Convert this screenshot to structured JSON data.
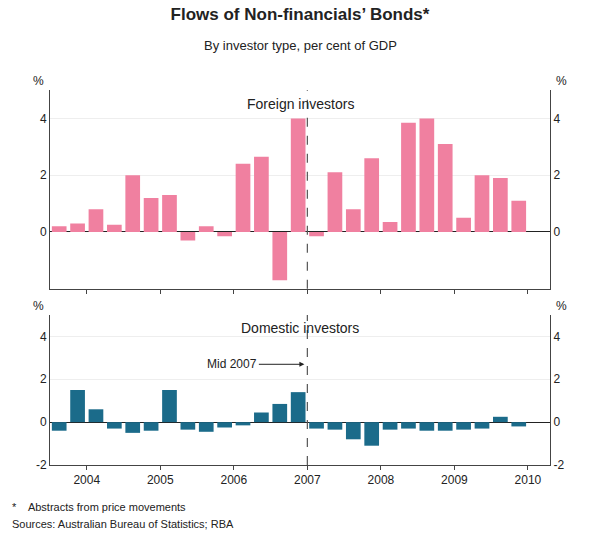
{
  "title": "Flows of Non-financials’ Bonds*",
  "subtitle": "By investor type, per cent of GDP",
  "annotations": [
    "*    Abstracts from price movements",
    "Sources: Australian Bureau of Statistics; RBA"
  ],
  "chart_data": [
    {
      "type": "bar",
      "title": "Foreign investors",
      "x": [
        2003.625,
        2003.875,
        2004.125,
        2004.375,
        2004.625,
        2004.875,
        2005.125,
        2005.375,
        2005.625,
        2005.875,
        2006.125,
        2006.375,
        2006.625,
        2006.875,
        2007.125,
        2007.375,
        2007.625,
        2007.875,
        2008.125,
        2008.375,
        2008.625,
        2008.875,
        2009.125,
        2009.375,
        2009.625,
        2009.875
      ],
      "values": [
        0.2,
        0.3,
        0.8,
        0.25,
        2.0,
        1.2,
        1.3,
        -0.3,
        0.2,
        -0.15,
        2.4,
        2.65,
        -1.7,
        4.0,
        -0.15,
        2.1,
        0.8,
        2.6,
        0.35,
        3.85,
        4.0,
        3.1,
        0.5,
        2.0,
        1.9,
        1.1
      ],
      "color": "#F080A0",
      "xlim": [
        2003.5,
        2010.3
      ],
      "xticks": [
        2004,
        2005,
        2006,
        2007,
        2008,
        2009,
        2010
      ],
      "ylim": [
        -2,
        5
      ],
      "yticks": [
        0,
        2,
        4
      ],
      "y2lim": [
        -2,
        5
      ],
      "y2ticks": [
        0,
        2,
        4
      ],
      "ylabel": "%",
      "y2label": "%",
      "grid": true,
      "tick_labels": "y",
      "vline": 2007.0
    },
    {
      "type": "bar",
      "title": "Domestic investors",
      "x": [
        2003.625,
        2003.875,
        2004.125,
        2004.375,
        2004.625,
        2004.875,
        2005.125,
        2005.375,
        2005.625,
        2005.875,
        2006.125,
        2006.375,
        2006.625,
        2006.875,
        2007.125,
        2007.375,
        2007.625,
        2007.875,
        2008.125,
        2008.375,
        2008.625,
        2008.875,
        2009.125,
        2009.375,
        2009.625,
        2009.875
      ],
      "values": [
        -0.4,
        1.5,
        0.6,
        -0.3,
        -0.5,
        -0.4,
        1.5,
        -0.35,
        -0.45,
        -0.25,
        -0.15,
        0.45,
        0.85,
        1.4,
        -0.3,
        -0.35,
        -0.8,
        -1.1,
        -0.35,
        -0.3,
        -0.4,
        -0.4,
        -0.35,
        -0.3,
        0.25,
        -0.2
      ],
      "color": "#1B6B8A",
      "xlim": [
        2003.5,
        2010.3
      ],
      "xticks": [
        2004,
        2005,
        2006,
        2007,
        2008,
        2009,
        2010
      ],
      "ylim": [
        -2,
        5
      ],
      "yticks": [
        -2,
        0,
        2,
        4
      ],
      "y2lim": [
        -2,
        5
      ],
      "y2ticks": [
        -2,
        0,
        2,
        4
      ],
      "ylabel": "%",
      "y2label": "%",
      "grid": true,
      "vline": 2007.0,
      "annotations": [
        {
          "text": "Mid 2007",
          "x": 2007.0,
          "y": 2.7
        }
      ]
    }
  ]
}
